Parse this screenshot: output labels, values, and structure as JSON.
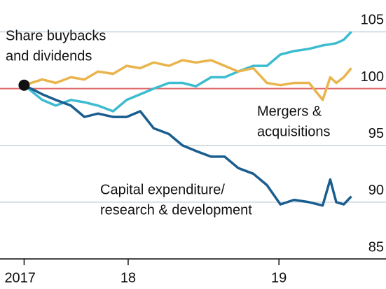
{
  "chart_data": {
    "type": "line",
    "x": [
      2017.81,
      2017.93,
      2018.02,
      2018.12,
      2018.21,
      2018.3,
      2018.4,
      2018.49,
      2018.58,
      2018.67,
      2018.77,
      2018.86,
      2018.95,
      2019.05,
      2019.14,
      2019.23,
      2019.33,
      2019.42,
      2019.51,
      2019.6,
      2019.7,
      2019.79,
      2019.84,
      2019.88,
      2019.93,
      2019.98
    ],
    "series": [
      {
        "name": [
          "Share buybacks",
          "and dividends"
        ],
        "color": "#3dbccf",
        "values": [
          100.3,
          99,
          98.5,
          99,
          98.8,
          98.5,
          98,
          99,
          99.5,
          100,
          100.5,
          100.5,
          100.2,
          101,
          101,
          101.5,
          102,
          102,
          103,
          103.3,
          103.5,
          103.8,
          103.9,
          104,
          104.3,
          105
        ]
      },
      {
        "name": [
          "Mergers &",
          "acquisitions"
        ],
        "color": "#e9b44c",
        "values": [
          100.3,
          100.8,
          100.5,
          101,
          100.8,
          101.5,
          101.3,
          102,
          101.8,
          102.3,
          102,
          102.5,
          102.3,
          102.5,
          102,
          101.5,
          101.8,
          100.5,
          100.3,
          100.5,
          100.5,
          99,
          101,
          100.5,
          101,
          101.8
        ]
      },
      {
        "name": [
          "Capital expenditure/",
          "research & development"
        ],
        "color": "#1a5d8f",
        "values": [
          100.3,
          99.5,
          99,
          98.5,
          97.5,
          97.8,
          97.5,
          97.5,
          98,
          96.5,
          96,
          95,
          94.5,
          94,
          94,
          93,
          92.5,
          91.5,
          89.8,
          90.2,
          90,
          89.7,
          92,
          90,
          89.8,
          90.5
        ]
      }
    ],
    "xlim": [
      2017.65,
      2020.21
    ],
    "xticks": [
      {
        "value": 2017.81,
        "label": "2017"
      },
      {
        "value": 2018.5,
        "label": "18"
      },
      {
        "value": 2019.5,
        "label": "19"
      }
    ],
    "ylim": [
      85,
      107.8
    ],
    "yticks": [
      85,
      90,
      95,
      100,
      105
    ],
    "reference_line": {
      "value": 100,
      "color": "#e0696e"
    },
    "grid": true
  }
}
